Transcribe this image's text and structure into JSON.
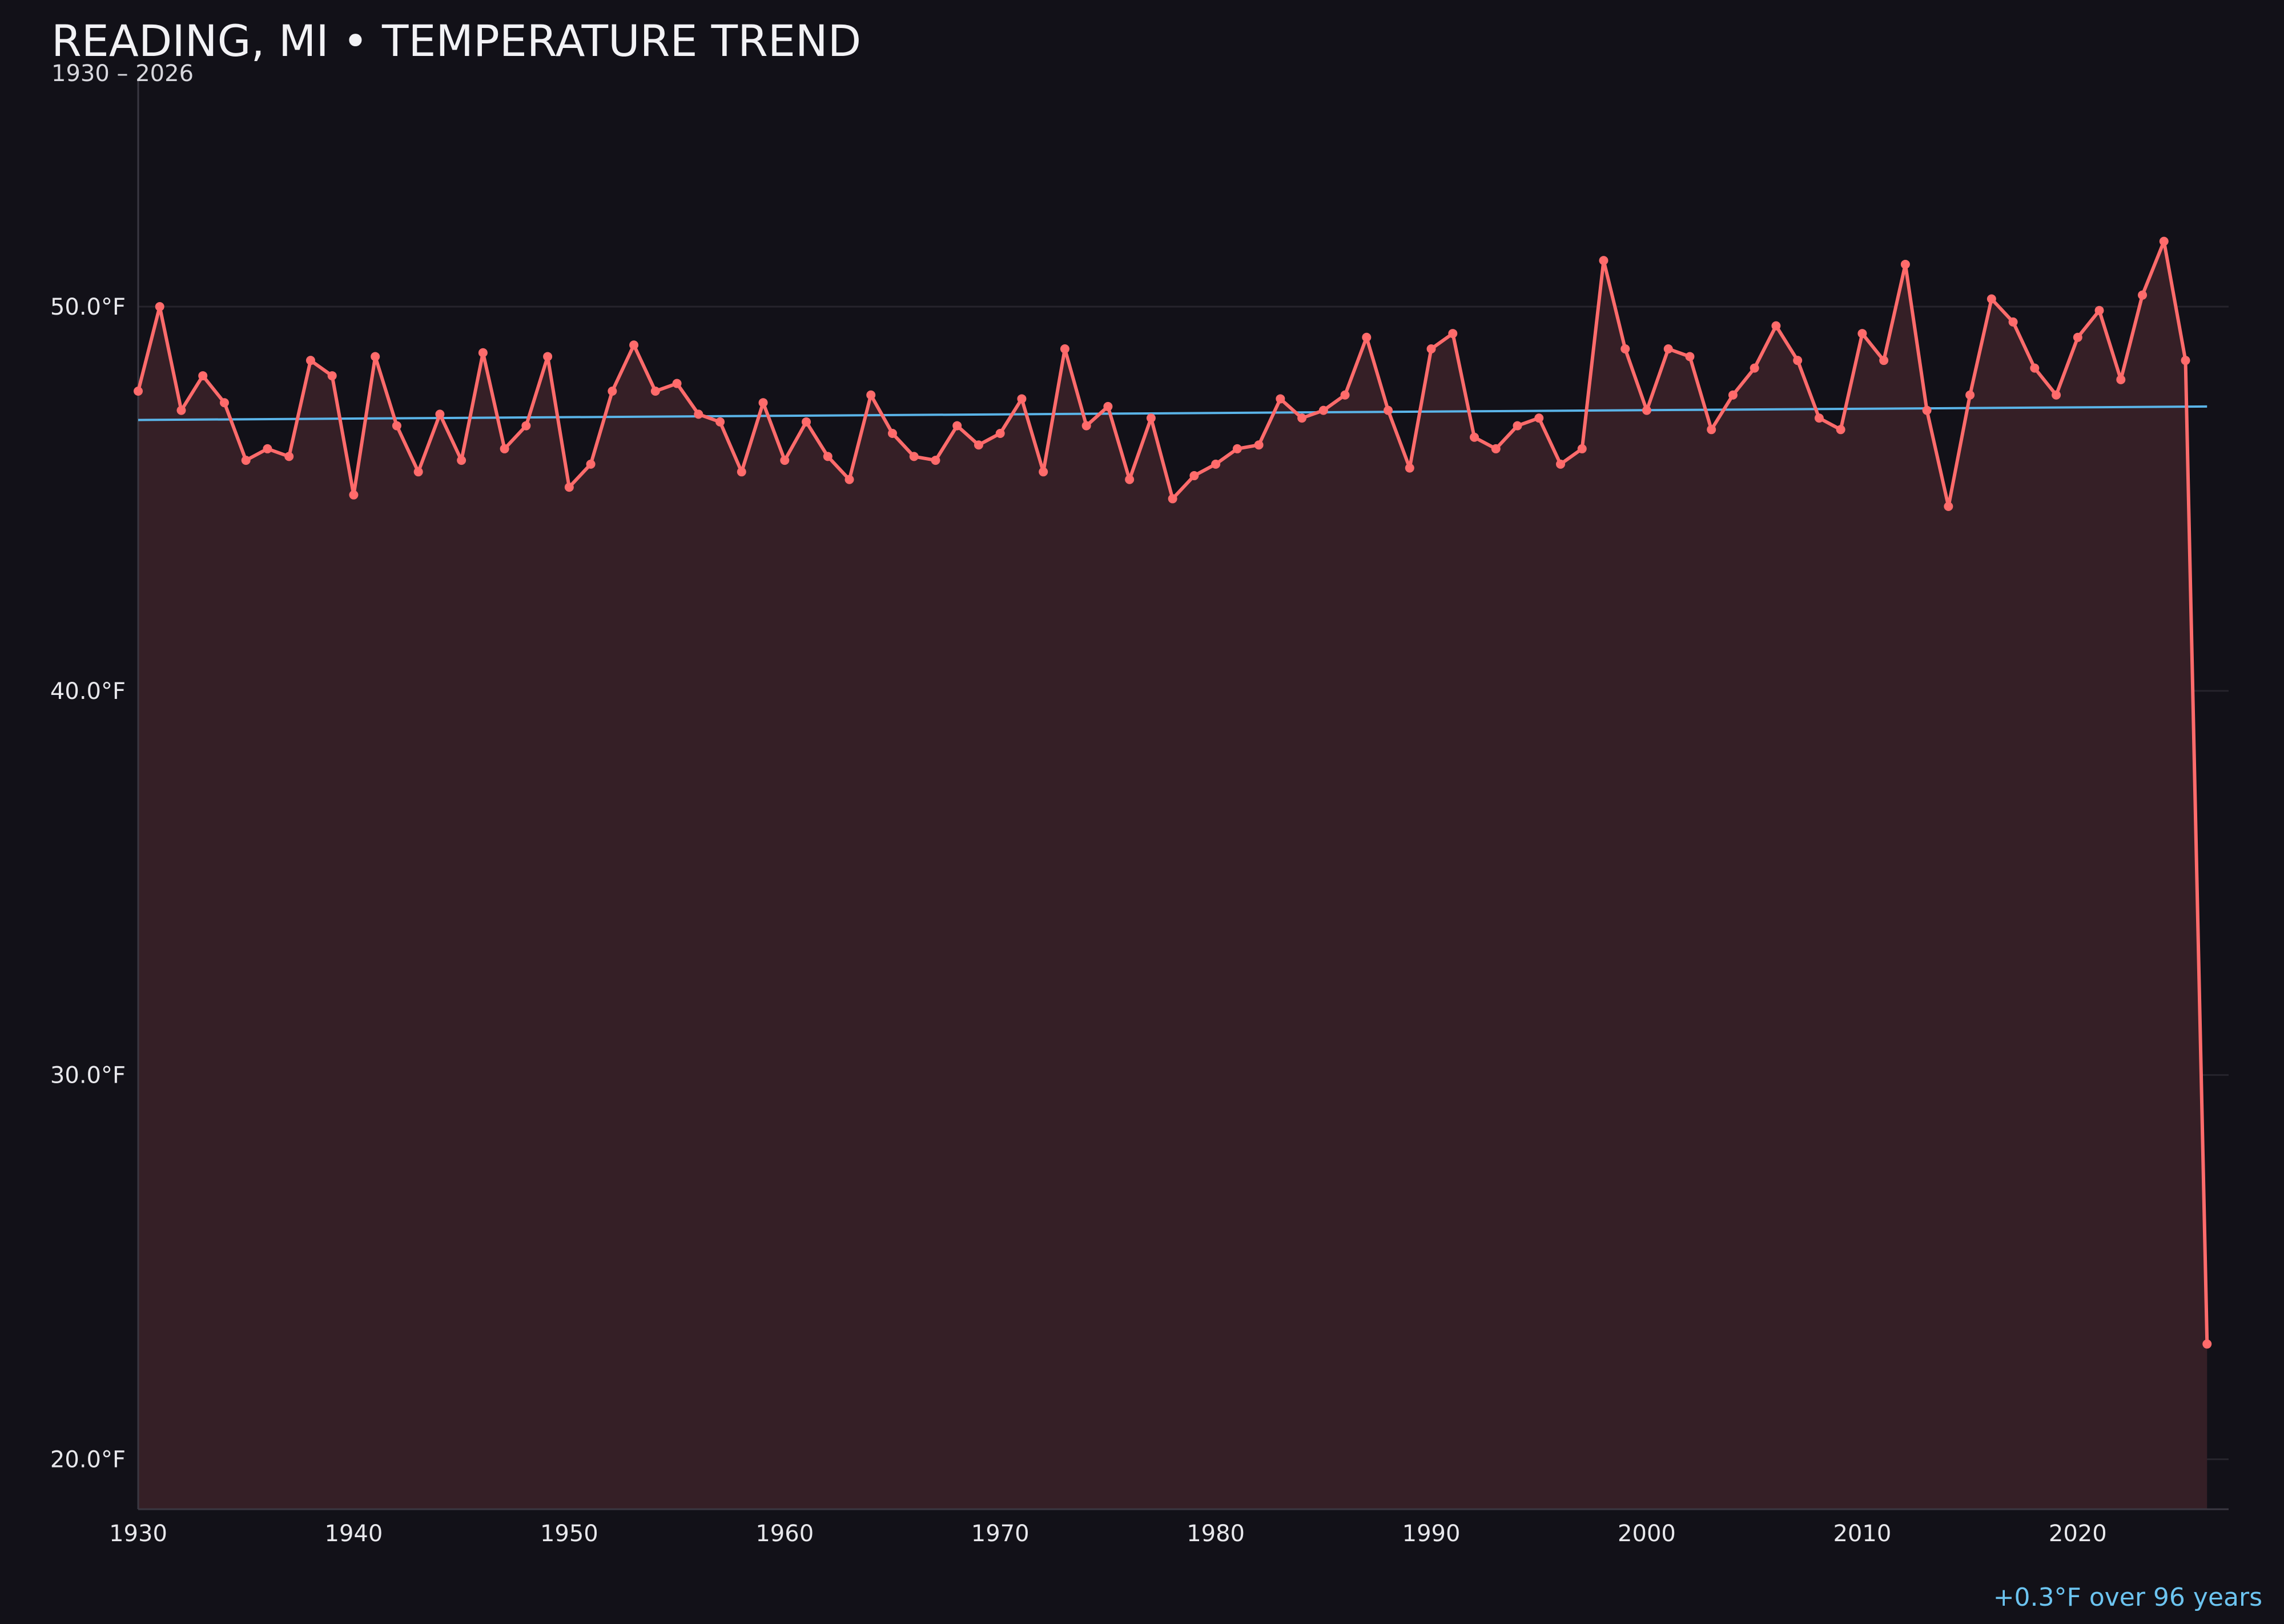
{
  "chart_data": {
    "type": "line",
    "title": "READING, MI • TEMPERATURE TREND",
    "subtitle": "1930 – 2026",
    "annotation": "+0.3°F over 96 years",
    "xlim": [
      1930,
      2027
    ],
    "ylim": [
      18.7,
      55.9
    ],
    "x_ticks": [
      1930,
      1940,
      1950,
      1960,
      1970,
      1980,
      1990,
      2000,
      2010,
      2020
    ],
    "y_ticks": [
      20,
      30,
      40,
      50
    ],
    "y_tick_labels": [
      "20.0°F",
      "30.0°F",
      "40.0°F",
      "50.0°F"
    ],
    "grid": "horizontal",
    "colors": {
      "background": "#121118",
      "line": "#ff6b6b",
      "fill": "#351f26",
      "trend": "#5ab4e8",
      "annotation": "#6cc4f0"
    },
    "x": [
      1930,
      1931,
      1932,
      1933,
      1934,
      1935,
      1936,
      1937,
      1938,
      1939,
      1940,
      1941,
      1942,
      1943,
      1944,
      1945,
      1946,
      1947,
      1948,
      1949,
      1950,
      1951,
      1952,
      1953,
      1954,
      1955,
      1956,
      1957,
      1958,
      1959,
      1960,
      1961,
      1962,
      1963,
      1964,
      1965,
      1966,
      1967,
      1968,
      1969,
      1970,
      1971,
      1972,
      1973,
      1974,
      1975,
      1976,
      1977,
      1978,
      1979,
      1980,
      1981,
      1982,
      1983,
      1984,
      1985,
      1986,
      1987,
      1988,
      1989,
      1990,
      1991,
      1992,
      1993,
      1994,
      1995,
      1996,
      1997,
      1998,
      1999,
      2000,
      2001,
      2002,
      2003,
      2004,
      2005,
      2006,
      2007,
      2008,
      2009,
      2010,
      2011,
      2012,
      2013,
      2014,
      2015,
      2016,
      2017,
      2018,
      2019,
      2020,
      2021,
      2022,
      2023,
      2024,
      2025,
      2026
    ],
    "series": [
      {
        "values": [
          47.8,
          50.0,
          47.3,
          48.2,
          47.5,
          46.0,
          46.3,
          46.1,
          48.6,
          48.2,
          45.1,
          48.7,
          46.9,
          45.7,
          47.2,
          46.0,
          48.8,
          46.3,
          46.9,
          48.7,
          45.3,
          45.9,
          47.8,
          49.0,
          47.8,
          48.0,
          47.2,
          47.0,
          45.7,
          47.5,
          46.0,
          47.0,
          46.1,
          45.5,
          47.7,
          46.7,
          46.1,
          46.0,
          46.9,
          46.4,
          46.7,
          47.6,
          45.7,
          48.9,
          46.9,
          47.4,
          45.5,
          47.1,
          45.0,
          45.6,
          45.9,
          46.3,
          46.4,
          47.6,
          47.1,
          47.3,
          47.7,
          49.2,
          47.3,
          45.8,
          48.9,
          49.3,
          46.6,
          46.3,
          46.9,
          47.1,
          45.9,
          46.3,
          51.2,
          48.9,
          47.3,
          48.9,
          48.7,
          46.8,
          47.7,
          48.4,
          49.5,
          48.6,
          47.1,
          46.8,
          49.3,
          48.6,
          51.1,
          47.3,
          44.8,
          47.7,
          50.2,
          49.6,
          48.4,
          47.7,
          49.2,
          49.9,
          48.1,
          50.3,
          51.7,
          48.6,
          23.0
        ]
      }
    ],
    "trend": {
      "x": [
        1930,
        2026
      ],
      "y": [
        47.05,
        47.4
      ]
    }
  }
}
